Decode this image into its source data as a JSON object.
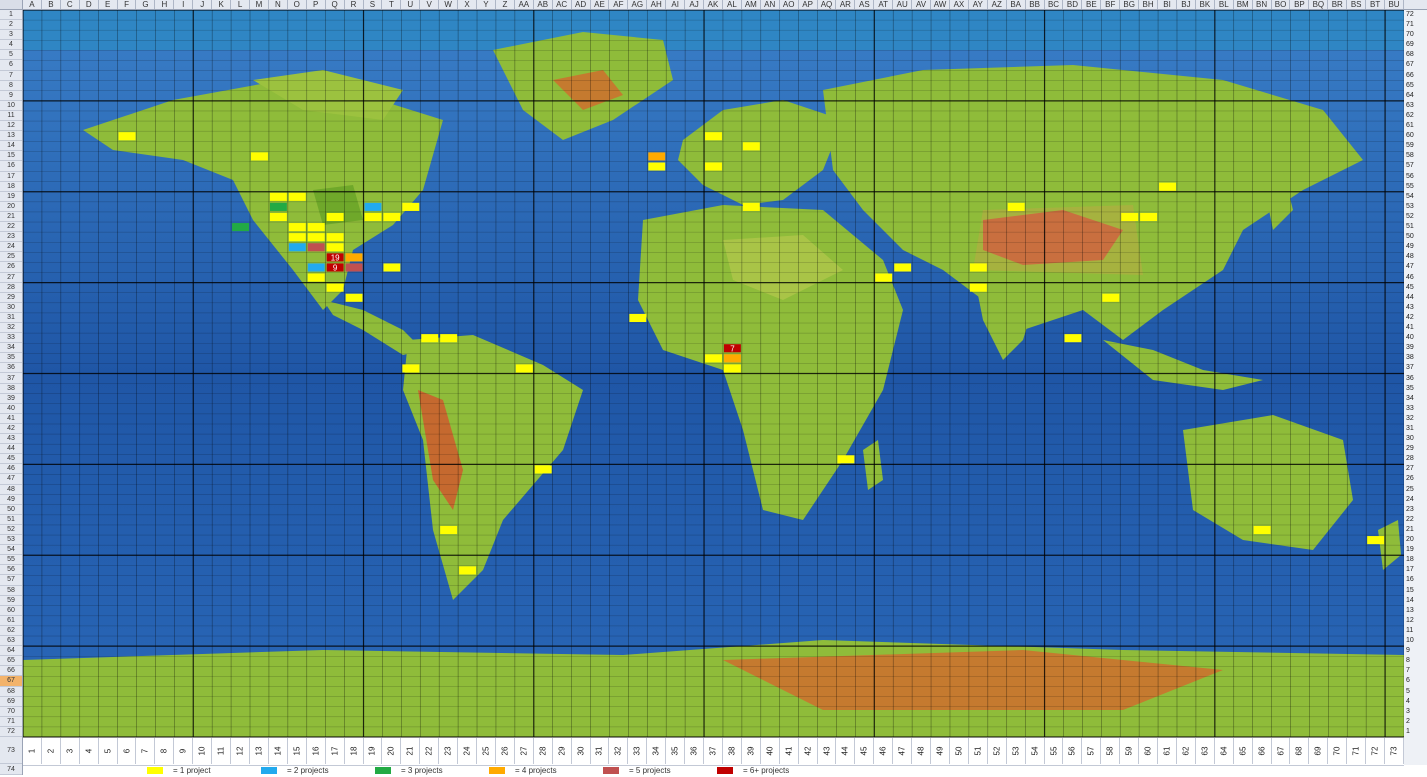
{
  "columns": [
    "A",
    "B",
    "C",
    "D",
    "E",
    "F",
    "G",
    "H",
    "I",
    "J",
    "K",
    "L",
    "M",
    "N",
    "O",
    "P",
    "Q",
    "R",
    "S",
    "T",
    "U",
    "V",
    "W",
    "X",
    "Y",
    "Z",
    "AA",
    "AB",
    "AC",
    "AD",
    "AE",
    "AF",
    "AG",
    "AH",
    "AI",
    "AJ",
    "AK",
    "AL",
    "AM",
    "AN",
    "AO",
    "AP",
    "AQ",
    "AR",
    "AS",
    "AT",
    "AU",
    "AV",
    "AW",
    "AX",
    "AY",
    "AZ",
    "BA",
    "BB",
    "BC",
    "BD",
    "BE",
    "BF",
    "BG",
    "BH",
    "BI",
    "BJ",
    "BK",
    "BL",
    "BM",
    "BN",
    "BO",
    "BP",
    "BQ",
    "BR",
    "BS",
    "BT",
    "BU"
  ],
  "selected_row": "67",
  "legend": [
    {
      "label": "= 1 project",
      "color": "#ffff00"
    },
    {
      "label": "= 2 projects",
      "color": "#22aaee"
    },
    {
      "label": "= 3 projects",
      "color": "#22aa44"
    },
    {
      "label": "= 4 projects",
      "color": "#ffaa00"
    },
    {
      "label": "= 5 projects",
      "color": "#c05050"
    },
    {
      "label": "= 6+ projects",
      "color": "#c00000"
    }
  ],
  "markers": [
    {
      "col": 6,
      "row": 13,
      "n": 1
    },
    {
      "col": 13,
      "row": 15,
      "n": 1
    },
    {
      "col": 14,
      "row": 19,
      "n": 1
    },
    {
      "col": 15,
      "row": 19,
      "n": 1
    },
    {
      "col": 14,
      "row": 20,
      "n": 3
    },
    {
      "col": 14,
      "row": 21,
      "n": 1
    },
    {
      "col": 12,
      "row": 22,
      "n": 3
    },
    {
      "col": 15,
      "row": 22,
      "n": 1
    },
    {
      "col": 16,
      "row": 22,
      "n": 1
    },
    {
      "col": 17,
      "row": 21,
      "n": 1
    },
    {
      "col": 15,
      "row": 23,
      "n": 1
    },
    {
      "col": 16,
      "row": 23,
      "n": 1
    },
    {
      "col": 17,
      "row": 23,
      "n": 1
    },
    {
      "col": 15,
      "row": 24,
      "n": 2
    },
    {
      "col": 16,
      "row": 24,
      "n": 5
    },
    {
      "col": 17,
      "row": 24,
      "n": 1
    },
    {
      "col": 17,
      "row": 25,
      "n": 6,
      "label": "19"
    },
    {
      "col": 18,
      "row": 25,
      "n": 4
    },
    {
      "col": 16,
      "row": 26,
      "n": 2
    },
    {
      "col": 17,
      "row": 26,
      "n": 6,
      "label": "9"
    },
    {
      "col": 18,
      "row": 26,
      "n": 5
    },
    {
      "col": 16,
      "row": 27,
      "n": 1
    },
    {
      "col": 17,
      "row": 28,
      "n": 1
    },
    {
      "col": 18,
      "row": 29,
      "n": 1
    },
    {
      "col": 19,
      "row": 20,
      "n": 2
    },
    {
      "col": 19,
      "row": 21,
      "n": 1
    },
    {
      "col": 20,
      "row": 21,
      "n": 1
    },
    {
      "col": 21,
      "row": 20,
      "n": 1
    },
    {
      "col": 20,
      "row": 26,
      "n": 1
    },
    {
      "col": 22,
      "row": 33,
      "n": 1
    },
    {
      "col": 23,
      "row": 33,
      "n": 1
    },
    {
      "col": 21,
      "row": 36,
      "n": 1
    },
    {
      "col": 27,
      "row": 36,
      "n": 1
    },
    {
      "col": 28,
      "row": 46,
      "n": 1
    },
    {
      "col": 23,
      "row": 52,
      "n": 1
    },
    {
      "col": 24,
      "row": 56,
      "n": 1
    },
    {
      "col": 34,
      "row": 15,
      "n": 4
    },
    {
      "col": 34,
      "row": 16,
      "n": 1
    },
    {
      "col": 37,
      "row": 13,
      "n": 1
    },
    {
      "col": 37,
      "row": 16,
      "n": 1
    },
    {
      "col": 39,
      "row": 14,
      "n": 1
    },
    {
      "col": 39,
      "row": 20,
      "n": 1
    },
    {
      "col": 33,
      "row": 31,
      "n": 1
    },
    {
      "col": 37,
      "row": 35,
      "n": 1
    },
    {
      "col": 38,
      "row": 34,
      "n": 6,
      "label": "7"
    },
    {
      "col": 38,
      "row": 35,
      "n": 4
    },
    {
      "col": 38,
      "row": 36,
      "n": 1
    },
    {
      "col": 44,
      "row": 45,
      "n": 1
    },
    {
      "col": 46,
      "row": 27,
      "n": 1
    },
    {
      "col": 47,
      "row": 26,
      "n": 1
    },
    {
      "col": 51,
      "row": 26,
      "n": 1
    },
    {
      "col": 51,
      "row": 28,
      "n": 1
    },
    {
      "col": 53,
      "row": 20,
      "n": 1
    },
    {
      "col": 59,
      "row": 21,
      "n": 1
    },
    {
      "col": 60,
      "row": 21,
      "n": 1
    },
    {
      "col": 61,
      "row": 18,
      "n": 1
    },
    {
      "col": 58,
      "row": 29,
      "n": 1
    },
    {
      "col": 56,
      "row": 33,
      "n": 1
    },
    {
      "col": 66,
      "row": 52,
      "n": 1
    },
    {
      "col": 72,
      "row": 53,
      "n": 1
    }
  ]
}
